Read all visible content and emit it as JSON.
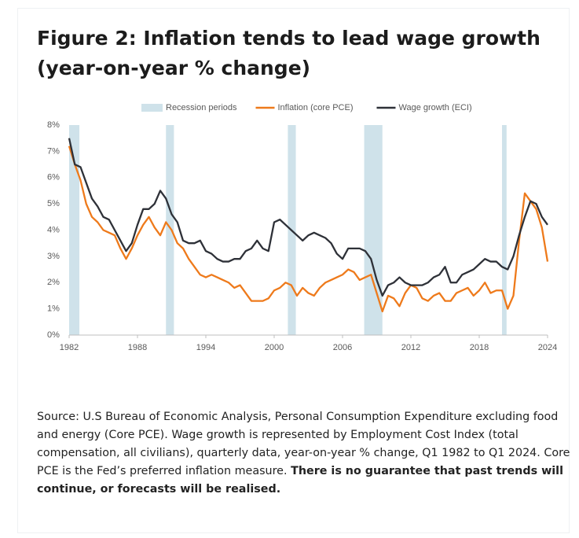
{
  "chart_data": {
    "type": "line",
    "title": "Figure 2: Inflation tends to lead wage growth (year-on-year % change)",
    "legend": "top",
    "grid": false,
    "recessions": {
      "name": "Recession periods",
      "color": "#cfe2ea",
      "spans": [
        [
          1982.0,
          1982.9
        ],
        [
          1990.5,
          1991.2
        ],
        [
          2001.2,
          2001.9
        ],
        [
          2007.9,
          2009.5
        ],
        [
          2020.0,
          2020.4
        ]
      ]
    },
    "x": [
      1982.0,
      1982.5,
      1983.0,
      1983.5,
      1984.0,
      1984.5,
      1985.0,
      1985.5,
      1986.0,
      1986.5,
      1987.0,
      1987.5,
      1988.0,
      1988.5,
      1989.0,
      1989.5,
      1990.0,
      1990.5,
      1991.0,
      1991.5,
      1992.0,
      1992.5,
      1993.0,
      1993.5,
      1994.0,
      1994.5,
      1995.0,
      1995.5,
      1996.0,
      1996.5,
      1997.0,
      1997.5,
      1998.0,
      1998.5,
      1999.0,
      1999.5,
      2000.0,
      2000.5,
      2001.0,
      2001.5,
      2002.0,
      2002.5,
      2003.0,
      2003.5,
      2004.0,
      2004.5,
      2005.0,
      2005.5,
      2006.0,
      2006.5,
      2007.0,
      2007.5,
      2008.0,
      2008.5,
      2009.0,
      2009.5,
      2010.0,
      2010.5,
      2011.0,
      2011.5,
      2012.0,
      2012.5,
      2013.0,
      2013.5,
      2014.0,
      2014.5,
      2015.0,
      2015.5,
      2016.0,
      2016.5,
      2017.0,
      2017.5,
      2018.0,
      2018.5,
      2019.0,
      2019.5,
      2020.0,
      2020.5,
      2021.0,
      2021.5,
      2022.0,
      2022.5,
      2023.0,
      2023.5,
      2024.0
    ],
    "series": [
      {
        "name": "Inflation (core PCE)",
        "color": "#ee7a1b",
        "values": [
          7.2,
          6.5,
          5.9,
          5.0,
          4.5,
          4.3,
          4.0,
          3.9,
          3.8,
          3.3,
          2.9,
          3.3,
          3.8,
          4.2,
          4.5,
          4.1,
          3.8,
          4.3,
          4.0,
          3.5,
          3.3,
          2.9,
          2.6,
          2.3,
          2.2,
          2.3,
          2.2,
          2.1,
          2.0,
          1.8,
          1.9,
          1.6,
          1.3,
          1.3,
          1.3,
          1.4,
          1.7,
          1.8,
          2.0,
          1.9,
          1.5,
          1.8,
          1.6,
          1.5,
          1.8,
          2.0,
          2.1,
          2.2,
          2.3,
          2.5,
          2.4,
          2.1,
          2.2,
          2.3,
          1.6,
          0.9,
          1.5,
          1.4,
          1.1,
          1.6,
          1.9,
          1.8,
          1.4,
          1.3,
          1.5,
          1.6,
          1.3,
          1.3,
          1.6,
          1.7,
          1.8,
          1.5,
          1.7,
          2.0,
          1.6,
          1.7,
          1.7,
          1.0,
          1.5,
          3.6,
          5.4,
          5.1,
          4.8,
          4.1,
          2.8
        ]
      },
      {
        "name": "Wage growth (ECI)",
        "color": "#2e3138",
        "values": [
          7.5,
          6.5,
          6.4,
          5.8,
          5.2,
          4.9,
          4.5,
          4.4,
          4.0,
          3.6,
          3.2,
          3.5,
          4.2,
          4.8,
          4.8,
          5.0,
          5.5,
          5.2,
          4.6,
          4.3,
          3.6,
          3.5,
          3.5,
          3.6,
          3.2,
          3.1,
          2.9,
          2.8,
          2.8,
          2.9,
          2.9,
          3.2,
          3.3,
          3.6,
          3.3,
          3.2,
          4.3,
          4.4,
          4.2,
          4.0,
          3.8,
          3.6,
          3.8,
          3.9,
          3.8,
          3.7,
          3.5,
          3.1,
          2.9,
          3.3,
          3.3,
          3.3,
          3.2,
          2.9,
          2.1,
          1.5,
          1.9,
          2.0,
          2.2,
          2.0,
          1.9,
          1.9,
          1.9,
          2.0,
          2.2,
          2.3,
          2.6,
          2.0,
          2.0,
          2.3,
          2.4,
          2.5,
          2.7,
          2.9,
          2.8,
          2.8,
          2.6,
          2.5,
          3.0,
          3.8,
          4.5,
          5.1,
          5.0,
          4.5,
          4.2
        ]
      }
    ],
    "xlim": [
      1982,
      2024
    ],
    "xticks": [
      1982,
      1988,
      1994,
      2000,
      2006,
      2012,
      2018,
      2024
    ],
    "ylim": [
      0,
      8
    ],
    "yticks": [
      {
        "value": 0,
        "label": "0%"
      },
      {
        "value": 1,
        "label": "1%"
      },
      {
        "value": 2,
        "label": "2%"
      },
      {
        "value": 3,
        "label": "3%"
      },
      {
        "value": 4,
        "label": "4%"
      },
      {
        "value": 5,
        "label": "5%"
      },
      {
        "value": 6,
        "label": "6%"
      },
      {
        "value": 7,
        "label": "7%"
      },
      {
        "value": 8,
        "label": "8%"
      }
    ],
    "source": "Source: U.S Bureau of Economic Analysis, Personal Consumption Expenditure excluding food and energy (Core PCE). Wage growth is represented by Employment Cost Index (total compensation, all civilians), quarterly data, year-on-year % change, Q1 1982 to Q1 2024. Core PCE is the Fed’s preferred inflation measure.",
    "source_bold": "There is no guarantee that past trends will continue, or forecasts will be realised."
  }
}
